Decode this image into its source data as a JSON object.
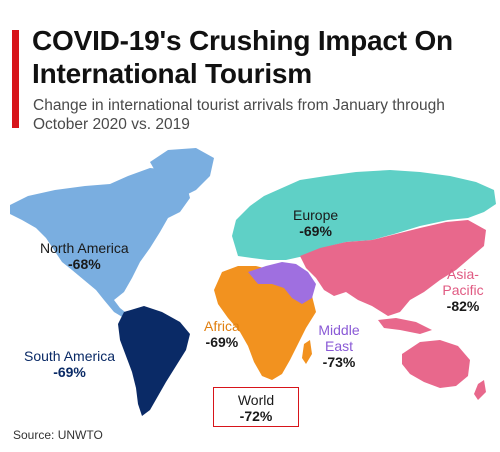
{
  "title": "COVID-19's Crushing Impact On International Tourism",
  "subtitle": "Change in international tourist arrivals from January through October 2020 vs. 2019",
  "source": "Source: UNWTO",
  "regions": [
    {
      "name": "North America",
      "value": "-68%",
      "color": "#7aaee0"
    },
    {
      "name": "South America",
      "value": "-69%",
      "color": "#0a2a66"
    },
    {
      "name": "Europe",
      "value": "-69%",
      "color": "#5fd0c6"
    },
    {
      "name": "Africa",
      "value": "-69%",
      "color": "#f2921f"
    },
    {
      "name": "Middle East",
      "value": "-73%",
      "color": "#9f6fe0"
    },
    {
      "name": "Asia-Pacific",
      "value": "-82%",
      "color": "#e8688c"
    }
  ],
  "world": {
    "name": "World",
    "value": "-72%"
  },
  "label_colors": {
    "north_america": "#1a1a1a",
    "south_america": "#0a2a66",
    "europe": "#1a1a1a",
    "africa": "#e07f10",
    "middle_east": "#8a5ad6",
    "asia_pacific": "#e05a82"
  }
}
